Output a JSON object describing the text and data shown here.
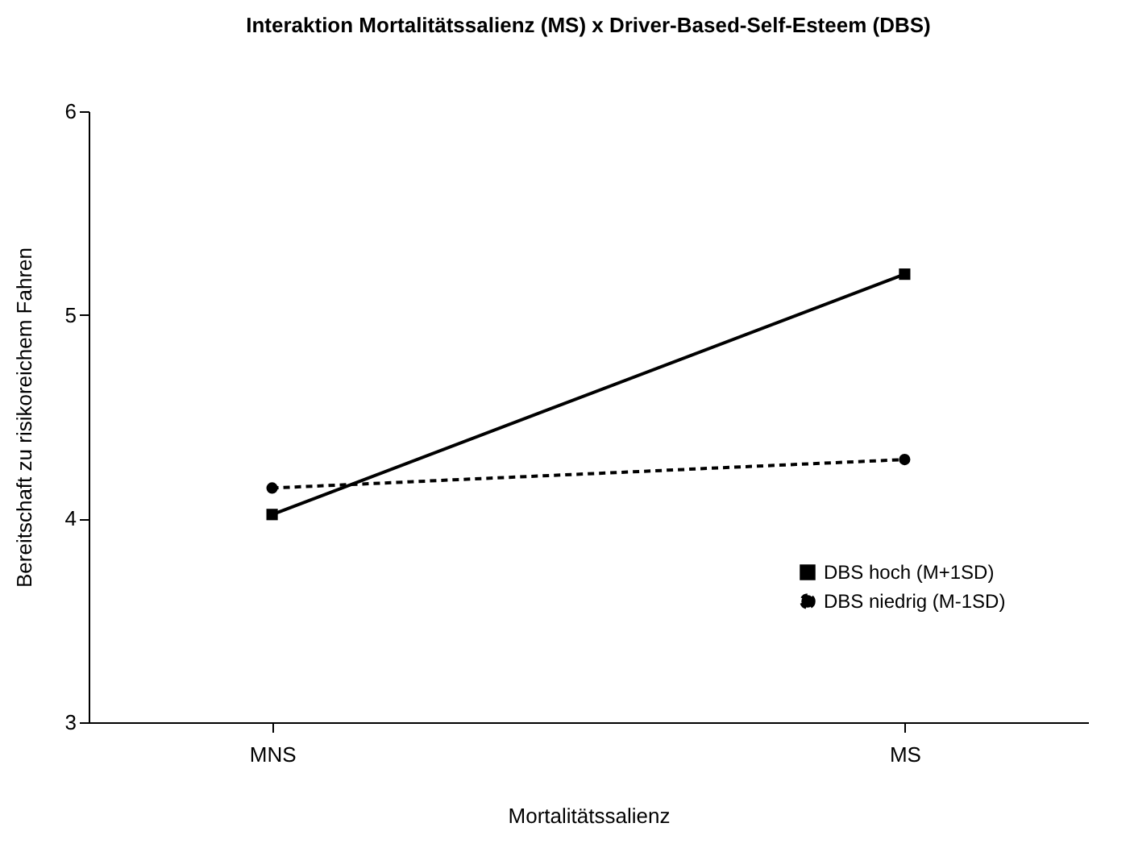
{
  "chart_data": {
    "type": "line",
    "title": "Interaktion Mortalitätssalienz (MS) x Driver-Based-Self-Esteem (DBS)",
    "xlabel": "Mortalitätssalienz",
    "ylabel": "Bereitschaft zu risikoreichem Fahren",
    "categories": [
      "MNS",
      "MS"
    ],
    "series": [
      {
        "name": "DBS hoch (M+1SD)",
        "color": "#000000",
        "values": [
          4.02,
          5.2
        ],
        "marker": "square",
        "line_style": "solid"
      },
      {
        "name": "DBS niedrig (M-1SD)",
        "color": "#000000",
        "values": [
          4.15,
          4.29
        ],
        "marker": "circle",
        "line_style": "dashed"
      }
    ],
    "ylim": [
      3,
      6
    ],
    "yticks": [
      3,
      4,
      5,
      6
    ],
    "grid": false,
    "legend": "bottom right"
  }
}
